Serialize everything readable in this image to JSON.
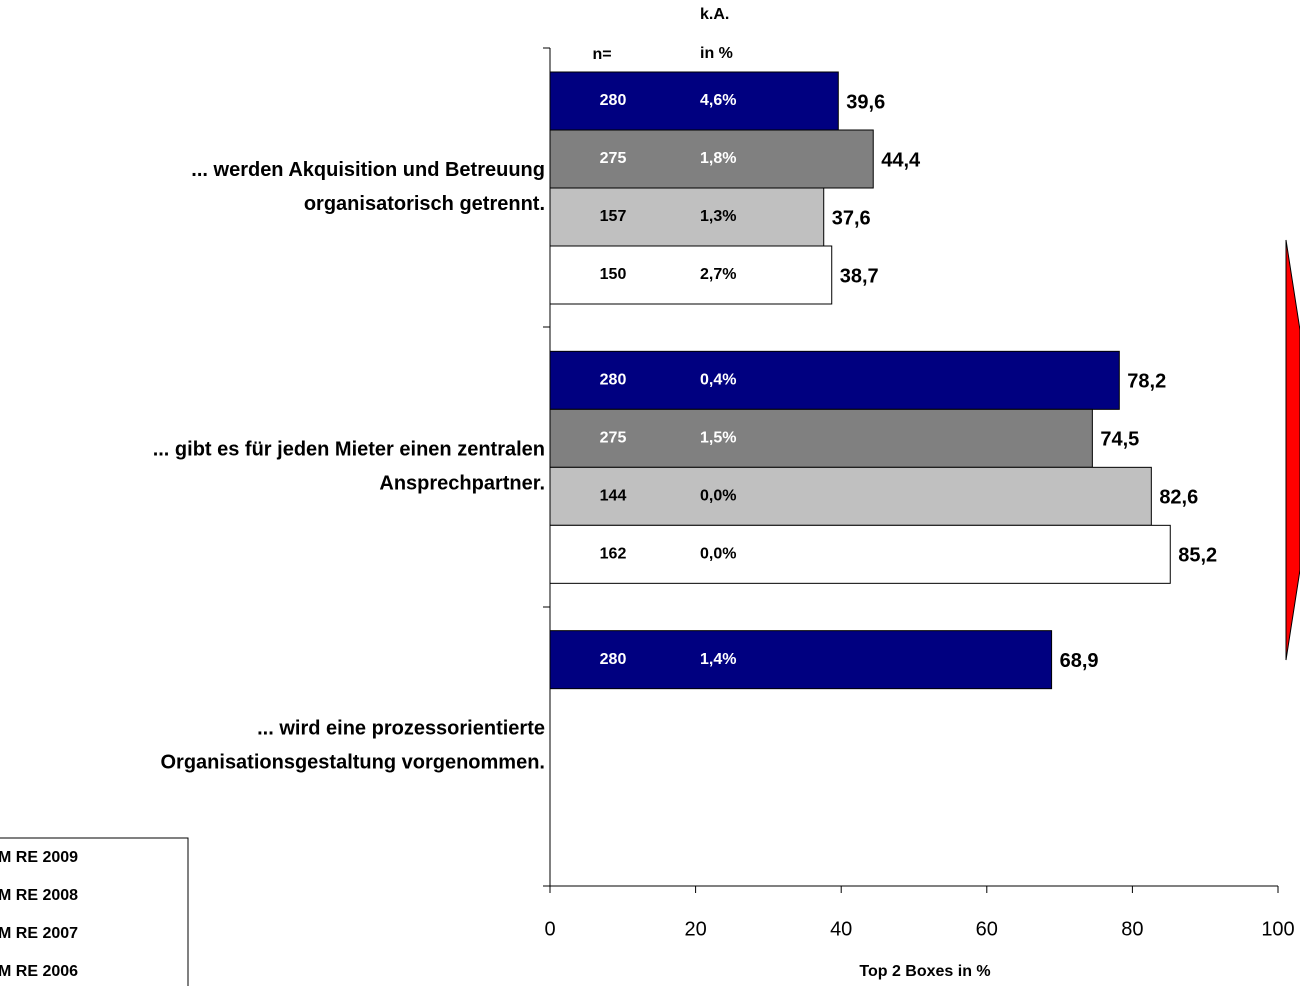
{
  "chart_data": {
    "type": "bar",
    "orientation": "horizontal",
    "categories": [
      [
        "... werden Akquisition und Betreuung",
        "organisatorisch getrennt."
      ],
      [
        "... gibt es für jeden Mieter einen zentralen",
        "Ansprechpartner."
      ],
      [
        "... wird eine prozessorientierte",
        "Organisationsgestaltung vorgenommen."
      ]
    ],
    "column_headers": {
      "n": "n=",
      "ka": [
        "k.A.",
        "in %"
      ]
    },
    "series": [
      {
        "name": "M RE 2009",
        "color": "#000080",
        "values": [
          39.6,
          78.2,
          68.9
        ],
        "value_labels": [
          "39,6",
          "78,2",
          "68,9"
        ],
        "n": [
          280,
          280,
          280
        ],
        "ka": [
          "4,6%",
          "0,4%",
          "1,4%"
        ]
      },
      {
        "name": "M RE 2008",
        "color": "#808080",
        "values": [
          44.4,
          74.5,
          null
        ],
        "value_labels": [
          "44,4",
          "74,5",
          null
        ],
        "n": [
          275,
          275,
          null
        ],
        "ka": [
          "1,8%",
          "1,5%",
          null
        ]
      },
      {
        "name": "M RE 2007",
        "color": "#c0c0c0",
        "values": [
          37.6,
          82.6,
          null
        ],
        "value_labels": [
          "37,6",
          "82,6",
          null
        ],
        "n": [
          157,
          144,
          null
        ],
        "ka": [
          "1,3%",
          "0,0%",
          null
        ]
      },
      {
        "name": "M RE 2006",
        "color": "#ffffff",
        "values": [
          38.7,
          85.2,
          null
        ],
        "value_labels": [
          "38,7",
          "85,2",
          null
        ],
        "n": [
          150,
          162,
          null
        ],
        "ka": [
          "2,7%",
          "0,0%",
          null
        ]
      }
    ],
    "xlabel": "Top 2 Boxes in %",
    "xlim": [
      0,
      100
    ],
    "xticks": [
      0,
      20,
      40,
      60,
      80,
      100
    ]
  }
}
